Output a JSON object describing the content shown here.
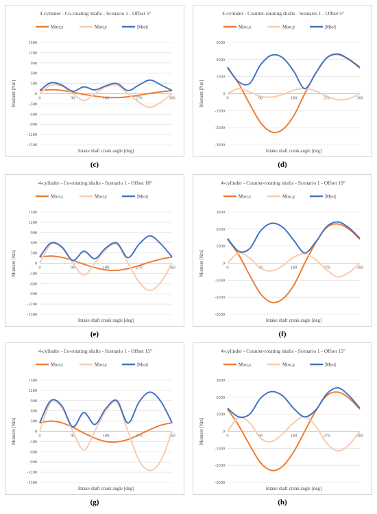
{
  "chart_data": [
    {
      "id": "c",
      "caption": "(c)",
      "type": "line",
      "title": "4-cylinder - Co-rotating shafts - Scenario 1 - Offset 5°",
      "xlabel": "Intake shaft crank angle [deg]",
      "ylabel": "Moment [Nm]",
      "xlim": [
        0,
        360
      ],
      "ylim": [
        -1500,
        1500
      ],
      "xticks": [
        "0",
        "90",
        "180",
        "270",
        "360"
      ],
      "yticks": [
        "1500",
        "1200",
        "900",
        "600",
        "300",
        "0",
        "-300",
        "-600",
        "-900",
        "-1200",
        "-1500"
      ],
      "legend_position": "top",
      "x": [
        0,
        30,
        60,
        90,
        120,
        150,
        180,
        210,
        240,
        270,
        300,
        330,
        360
      ],
      "series": [
        {
          "name": "Mtot,x",
          "color": "#ed7d31",
          "values": [
            90,
            115,
            95,
            40,
            -20,
            -70,
            -110,
            -115,
            -90,
            -45,
            10,
            55,
            90
          ]
        },
        {
          "name": "Mtot,y",
          "color": "#f8cbad",
          "values": [
            0,
            250,
            220,
            0,
            -200,
            0,
            200,
            250,
            0,
            -250,
            -400,
            -250,
            0
          ]
        },
        {
          "name": "|Mtot|",
          "color": "#4472c4",
          "values": [
            90,
            320,
            250,
            70,
            200,
            110,
            230,
            300,
            90,
            255,
            400,
            255,
            90
          ]
        }
      ]
    },
    {
      "id": "d",
      "caption": "(d)",
      "type": "line",
      "title": "4-cylinder - Counter-rotating shafts - Scenario 1 - Offset 5°",
      "xlabel": "Intake shaft crank angle [deg]",
      "ylabel": "Moment [Nm]",
      "xlim": [
        0,
        360
      ],
      "ylim": [
        -3000,
        3000
      ],
      "xticks": [
        "0",
        "90",
        "180",
        "270",
        "360"
      ],
      "yticks": [
        "3000",
        "2000",
        "1000",
        "0",
        "-1000",
        "-2000",
        "-3000"
      ],
      "legend_position": "top",
      "x": [
        0,
        30,
        60,
        90,
        120,
        150,
        180,
        210,
        240,
        270,
        300,
        330,
        360
      ],
      "series": [
        {
          "name": "Mtot,x",
          "color": "#ed7d31",
          "values": [
            1500,
            600,
            -600,
            -1700,
            -2250,
            -2100,
            -1300,
            0,
            1200,
            2100,
            2300,
            2000,
            1500
          ]
        },
        {
          "name": "Mtot,y",
          "color": "#f8cbad",
          "values": [
            0,
            300,
            100,
            -150,
            -200,
            -50,
            200,
            300,
            150,
            -150,
            -350,
            -300,
            0
          ]
        },
        {
          "name": "|Mtot|",
          "color": "#4472c4",
          "values": [
            1550,
            700,
            600,
            1700,
            2260,
            2110,
            1320,
            300,
            1210,
            2110,
            2330,
            2020,
            1550
          ]
        }
      ]
    },
    {
      "id": "e",
      "caption": "(e)",
      "type": "line",
      "title": "4-cylinder - Co-rotating shafts - Scenario 1 - Offset 10°",
      "xlabel": "Intake shaft crank angle [deg]",
      "ylabel": "Moment [Nm]",
      "xlim": [
        0,
        360
      ],
      "ylim": [
        -1500,
        1500
      ],
      "xticks": [
        "0",
        "90",
        "180",
        "270",
        "360"
      ],
      "yticks": [
        "1500",
        "1200",
        "900",
        "600",
        "300",
        "0",
        "-300",
        "-600",
        "-900",
        "-1200",
        "-1500"
      ],
      "legend_position": "top",
      "x": [
        0,
        30,
        60,
        90,
        120,
        150,
        180,
        210,
        240,
        270,
        300,
        330,
        360
      ],
      "series": [
        {
          "name": "Mtot,x",
          "color": "#ed7d31",
          "values": [
            180,
            210,
            170,
            80,
            -30,
            -130,
            -200,
            -210,
            -160,
            -70,
            30,
            120,
            180
          ]
        },
        {
          "name": "Mtot,y",
          "color": "#f8cbad",
          "values": [
            0,
            550,
            450,
            0,
            -350,
            0,
            400,
            550,
            0,
            -550,
            -800,
            -550,
            0
          ]
        },
        {
          "name": "|Mtot|",
          "color": "#4472c4",
          "values": [
            180,
            590,
            480,
            80,
            350,
            130,
            450,
            590,
            160,
            555,
            800,
            560,
            180
          ]
        }
      ]
    },
    {
      "id": "f",
      "caption": "(f)",
      "type": "line",
      "title": "4-cylinder - Counter-rotating shafts - Scenario 1 - Offset 10°",
      "xlabel": "Intake shaft crank angle [deg]",
      "ylabel": "Moment [Nm]",
      "xlim": [
        0,
        360
      ],
      "ylim": [
        -3000,
        3000
      ],
      "xticks": [
        "0",
        "90",
        "180",
        "270",
        "360"
      ],
      "yticks": [
        "3000",
        "2000",
        "1000",
        "0",
        "-1000",
        "-2000",
        "-3000"
      ],
      "legend_position": "top",
      "x": [
        0,
        30,
        60,
        90,
        120,
        150,
        180,
        210,
        240,
        270,
        300,
        330,
        360
      ],
      "series": [
        {
          "name": "Mtot,x",
          "color": "#ed7d31",
          "values": [
            1400,
            500,
            -700,
            -1800,
            -2300,
            -2100,
            -1300,
            0,
            1200,
            2100,
            2300,
            2000,
            1400
          ]
        },
        {
          "name": "Mtot,y",
          "color": "#f8cbad",
          "values": [
            0,
            600,
            300,
            -300,
            -450,
            -150,
            350,
            550,
            200,
            -400,
            -800,
            -550,
            0
          ]
        },
        {
          "name": "|Mtot|",
          "color": "#4472c4",
          "values": [
            1450,
            700,
            850,
            1900,
            2340,
            2110,
            1350,
            600,
            1250,
            2150,
            2420,
            2080,
            1450
          ]
        }
      ]
    },
    {
      "id": "g",
      "caption": "(g)",
      "type": "line",
      "title": "4-cylinder - Co-rotating shafts - Scenario 1 - Offset 15°",
      "xlabel": "Intake shaft crank angle [deg]",
      "ylabel": "Moment [Nm]",
      "xlim": [
        0,
        360
      ],
      "ylim": [
        -1500,
        1500
      ],
      "xticks": [
        "0",
        "90",
        "180",
        "270",
        "360"
      ],
      "yticks": [
        "1500",
        "1200",
        "900",
        "600",
        "300",
        "0",
        "-300",
        "-600",
        "-900",
        "-1200",
        "-1500"
      ],
      "legend_position": "top",
      "x": [
        0,
        30,
        60,
        90,
        120,
        150,
        180,
        210,
        240,
        270,
        300,
        330,
        360
      ],
      "series": [
        {
          "name": "Mtot,x",
          "color": "#ed7d31",
          "values": [
            250,
            300,
            250,
            120,
            -50,
            -200,
            -300,
            -310,
            -240,
            -100,
            50,
            180,
            250
          ]
        },
        {
          "name": "Mtot,y",
          "color": "#f8cbad",
          "values": [
            0,
            850,
            700,
            0,
            -550,
            0,
            600,
            850,
            0,
            -850,
            -1150,
            -850,
            0
          ]
        },
        {
          "name": "|Mtot|",
          "color": "#4472c4",
          "values": [
            250,
            900,
            750,
            130,
            550,
            200,
            670,
            900,
            240,
            855,
            1150,
            870,
            250
          ]
        }
      ]
    },
    {
      "id": "h",
      "caption": "(h)",
      "type": "line",
      "title": "4-cylinder - Counter-rotating shafts - Scenario 1 - Offset 15°",
      "xlabel": "Intake shaft crank angle [deg]",
      "ylabel": "Moment [Nm]",
      "xlim": [
        0,
        360
      ],
      "ylim": [
        -3000,
        3000
      ],
      "xticks": [
        "0",
        "90",
        "180",
        "270",
        "360"
      ],
      "yticks": [
        "3000",
        "2000",
        "1000",
        "0",
        "-1000",
        "-2000",
        "-3000"
      ],
      "legend_position": "top",
      "x": [
        0,
        30,
        60,
        90,
        120,
        150,
        180,
        210,
        240,
        270,
        300,
        330,
        360
      ],
      "series": [
        {
          "name": "Mtot,x",
          "color": "#ed7d31",
          "values": [
            1300,
            350,
            -800,
            -1850,
            -2300,
            -2050,
            -1200,
            0,
            1200,
            2100,
            2300,
            1950,
            1300
          ]
        },
        {
          "name": "Mtot,y",
          "color": "#f8cbad",
          "values": [
            0,
            800,
            500,
            -400,
            -600,
            -150,
            500,
            850,
            300,
            -700,
            -1150,
            -800,
            0
          ]
        },
        {
          "name": "|Mtot|",
          "color": "#4472c4",
          "values": [
            1350,
            850,
            1000,
            1950,
            2330,
            2080,
            1340,
            850,
            1250,
            2200,
            2550,
            2100,
            1350
          ]
        }
      ]
    }
  ]
}
